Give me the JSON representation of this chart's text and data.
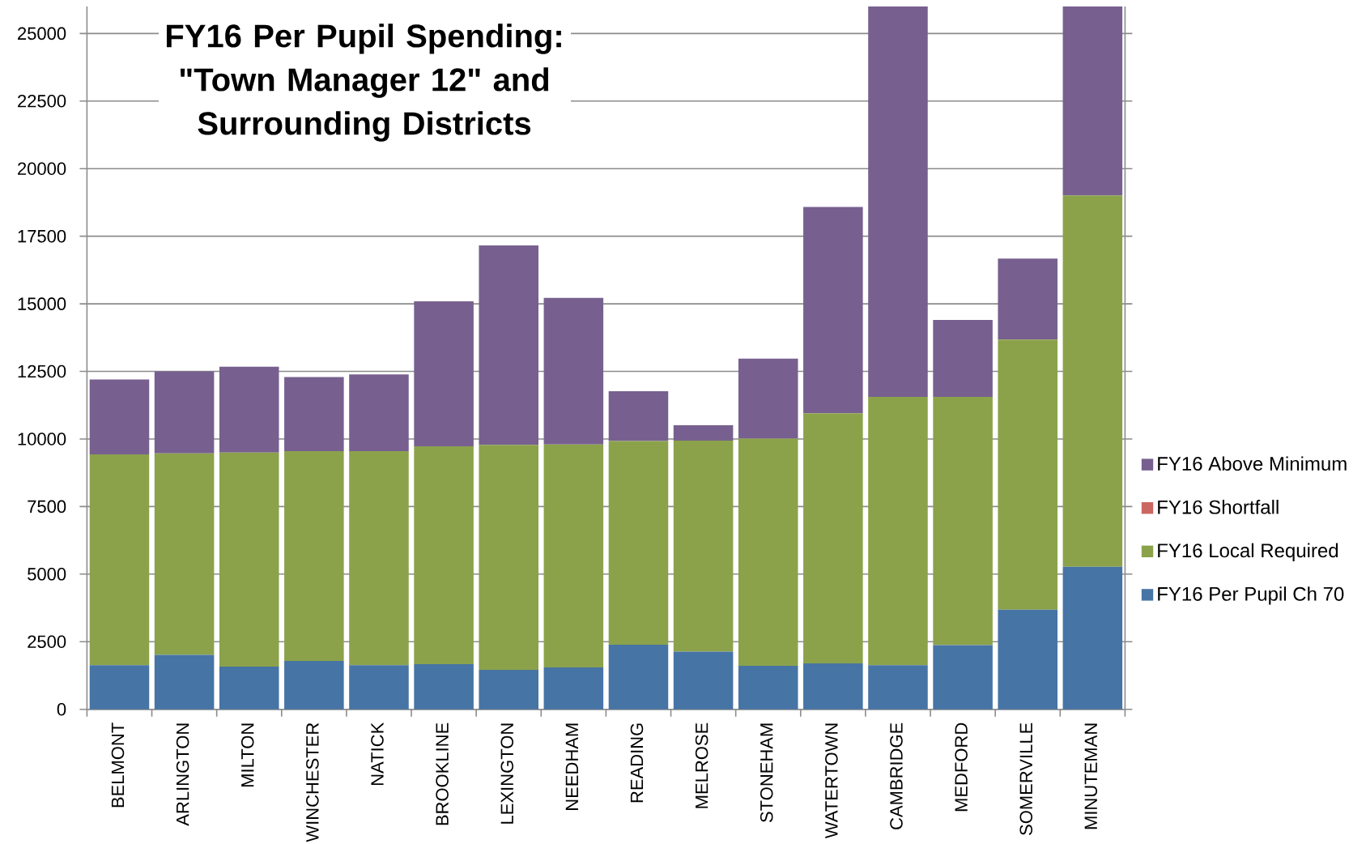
{
  "chart_data": {
    "type": "bar",
    "title": "FY16 Per Pupil Spending: \"Town Manager 12\" and Surrounding Districts",
    "categories": [
      "BELMONT",
      "ARLINGTON",
      "MILTON",
      "WINCHESTER",
      "NATICK",
      "BROOKLINE",
      "LEXINGTON",
      "NEEDHAM",
      "READING",
      "MELROSE",
      "STONEHAM",
      "WATERTOWN",
      "CAMBRIDGE",
      "MEDFORD",
      "SOMERVILLE",
      "MINUTEMAN"
    ],
    "stacked": true,
    "series": [
      {
        "name": "FY16 Per Pupil Ch 70",
        "color": "#4674a5",
        "values": [
          1630,
          2010,
          1580,
          1790,
          1630,
          1670,
          1460,
          1550,
          2390,
          2130,
          1610,
          1700,
          1630,
          2370,
          3680,
          5270
        ]
      },
      {
        "name": "FY16 Local Required",
        "color": "#8ba24b",
        "values": [
          7800,
          7460,
          7920,
          7760,
          7920,
          8060,
          8320,
          8250,
          7530,
          7810,
          8400,
          9250,
          9930,
          9190,
          10000,
          13740
        ]
      },
      {
        "name": "FY16 Shortfall",
        "color": "#cc6660",
        "values": [
          0,
          0,
          0,
          0,
          0,
          0,
          0,
          0,
          0,
          0,
          0,
          0,
          0,
          0,
          0,
          0
        ]
      },
      {
        "name": "FY16 Above Minimum",
        "color": "#77608f",
        "values": [
          2770,
          3030,
          3170,
          2740,
          2840,
          5360,
          7380,
          5420,
          1850,
          570,
          2960,
          7630,
          14440,
          2840,
          2990,
          6990
        ]
      }
    ],
    "ylim": [
      0,
      26000
    ],
    "yticks": [
      0,
      2500,
      5000,
      7500,
      10000,
      12500,
      15000,
      17500,
      20000,
      22500,
      25000
    ],
    "grid": "y",
    "legend": "right"
  }
}
